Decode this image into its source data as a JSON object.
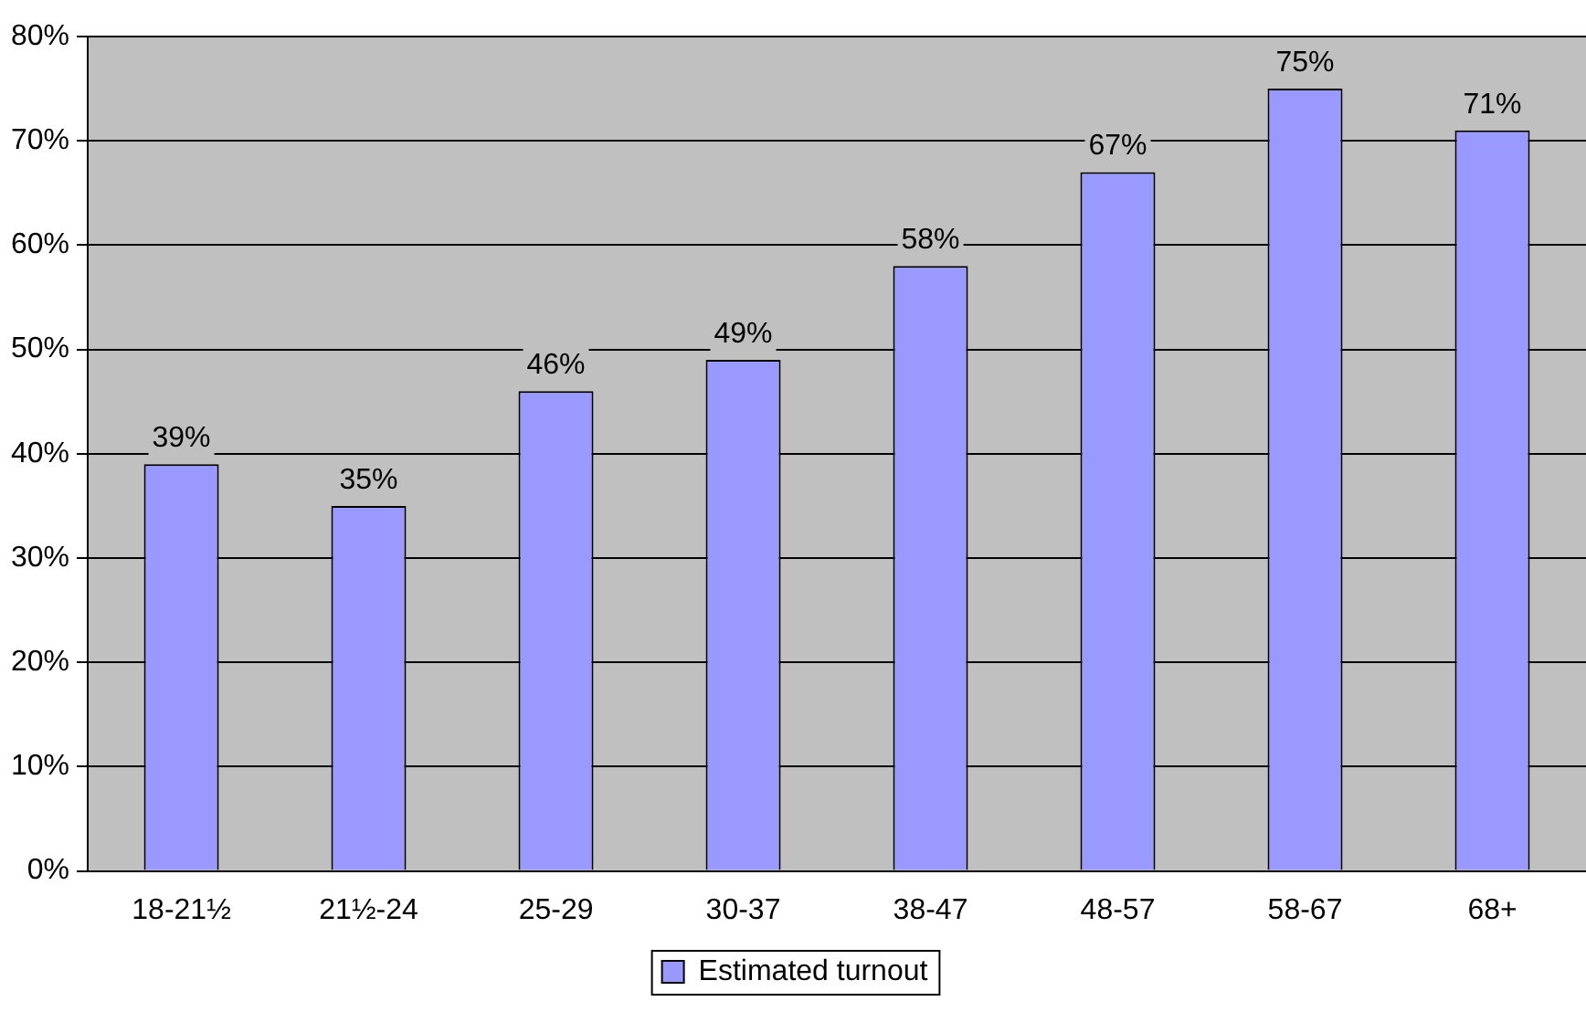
{
  "chart_data": {
    "type": "bar",
    "categories": [
      "18-21½",
      "21½-24",
      "25-29",
      "30-37",
      "38-47",
      "48-57",
      "58-67",
      "68+"
    ],
    "series": [
      {
        "name": "Estimated turnout",
        "color": "#9999ff",
        "values": [
          39,
          35,
          46,
          49,
          58,
          67,
          75,
          71
        ],
        "value_labels": [
          "39%",
          "35%",
          "46%",
          "49%",
          "58%",
          "67%",
          "75%",
          "71%"
        ]
      }
    ],
    "ylim": [
      0,
      80
    ],
    "yticks": [
      {
        "value": 0,
        "label": "0%"
      },
      {
        "value": 10,
        "label": "10%"
      },
      {
        "value": 20,
        "label": "20%"
      },
      {
        "value": 30,
        "label": "30%"
      },
      {
        "value": 40,
        "label": "40%"
      },
      {
        "value": 50,
        "label": "50%"
      },
      {
        "value": 60,
        "label": "60%"
      },
      {
        "value": 70,
        "label": "70%"
      },
      {
        "value": 80,
        "label": "80%"
      }
    ],
    "grid": "y",
    "legend": "bottom"
  }
}
